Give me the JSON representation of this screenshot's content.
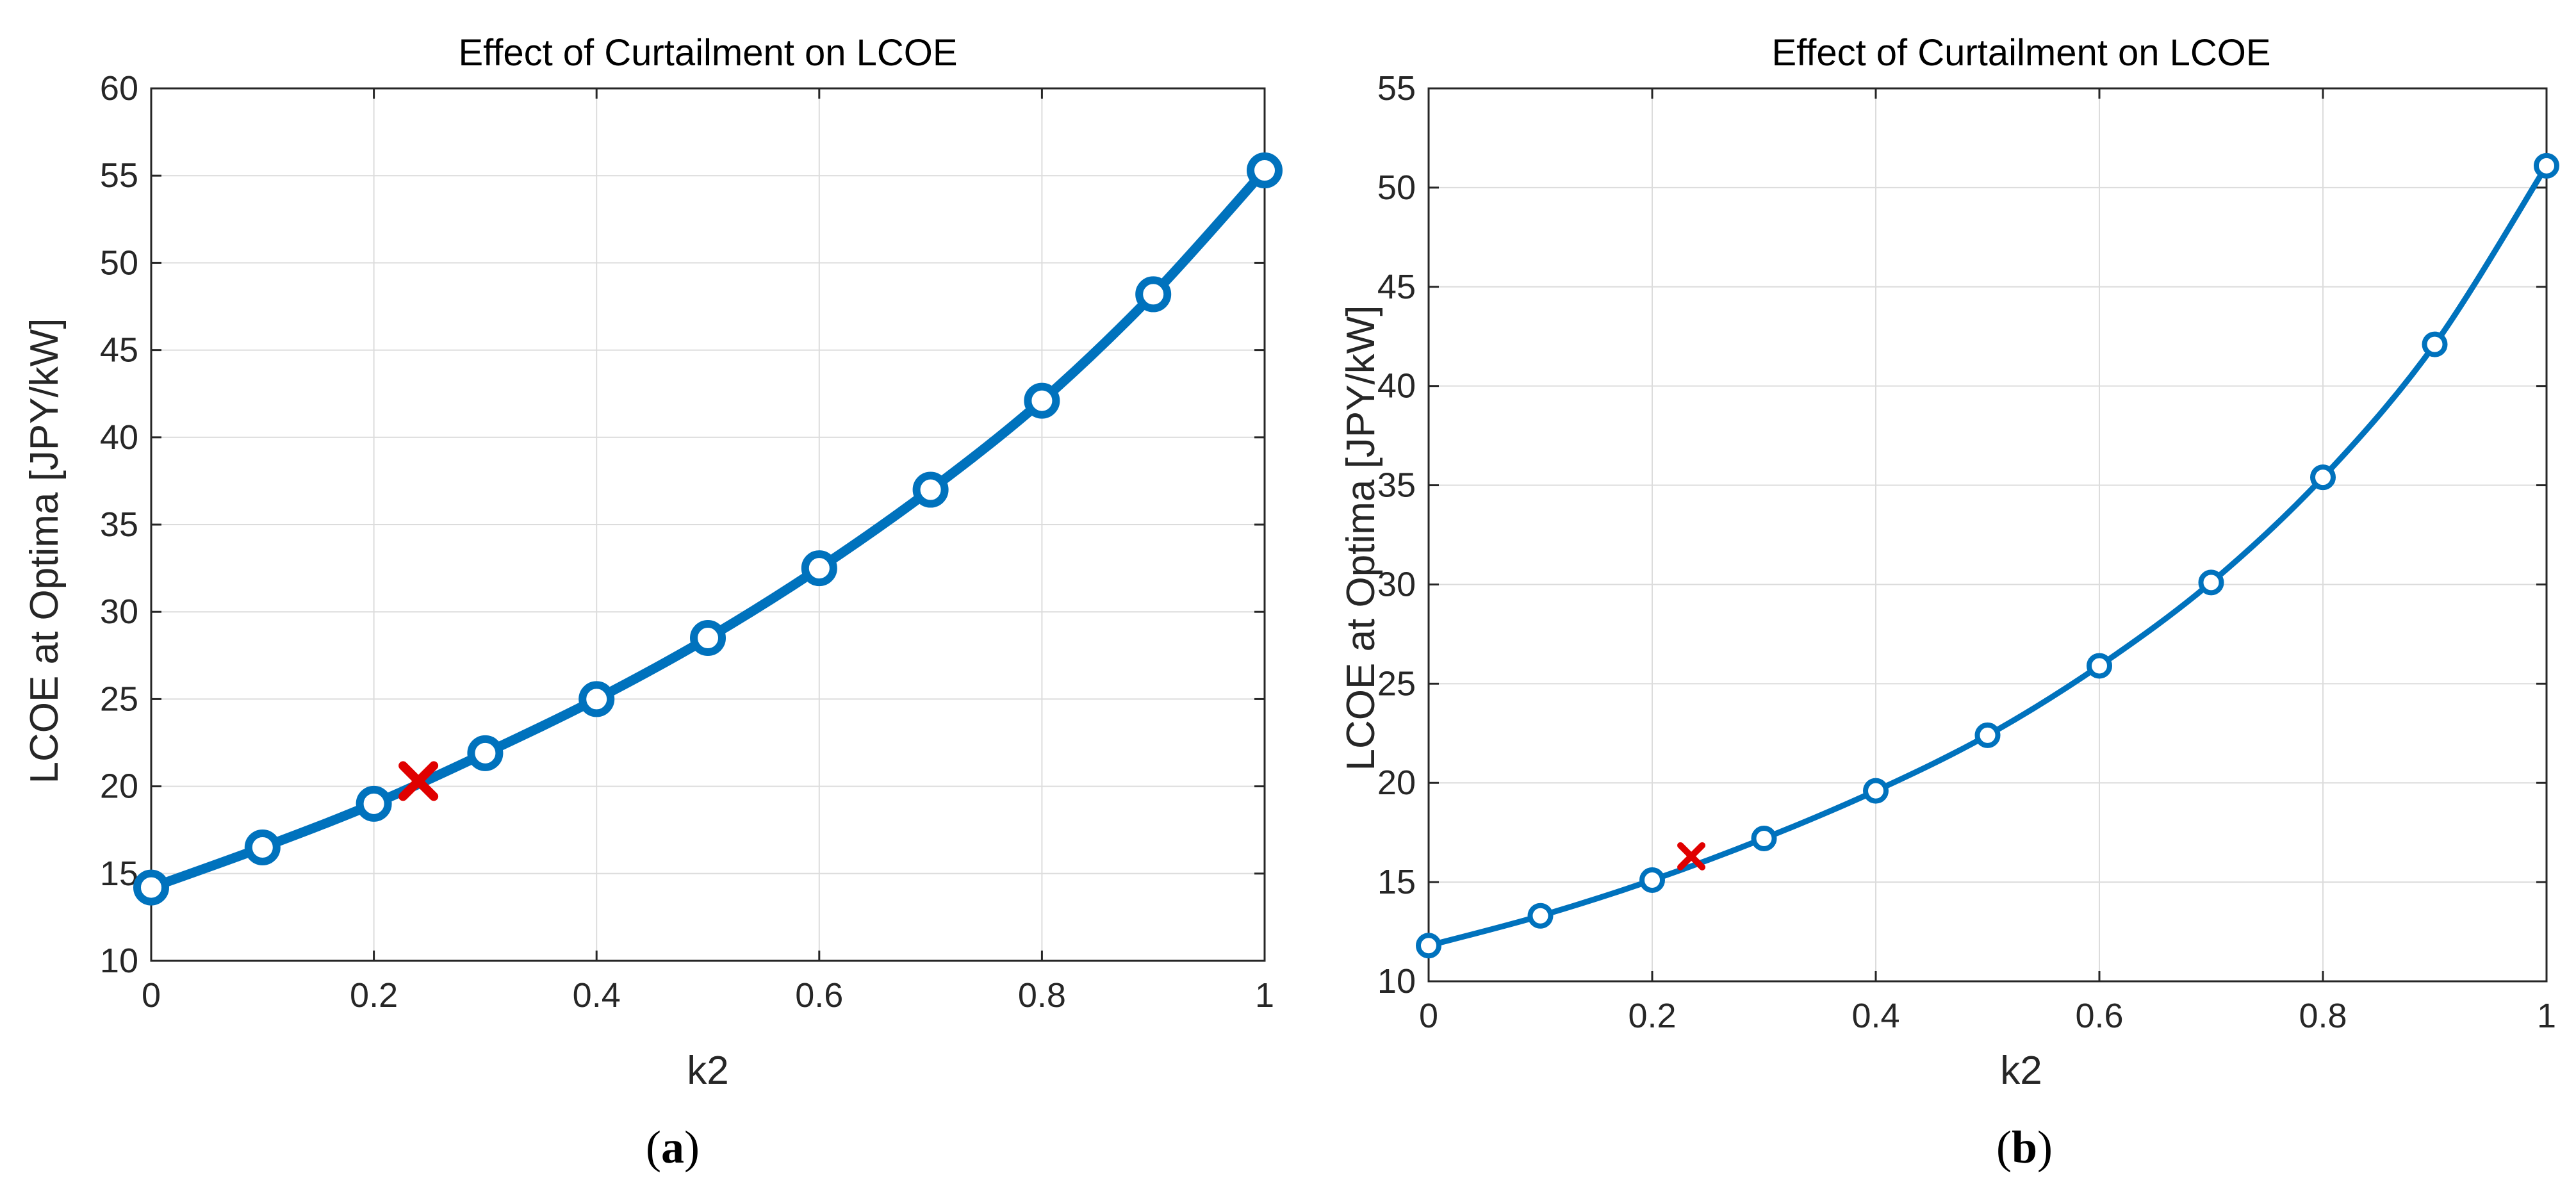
{
  "chart_data": [
    {
      "type": "line",
      "title": "Effect of Curtailment on LCOE",
      "xlabel": "k2",
      "ylabel": "LCOE at Optima [JPY/kW]",
      "xlim": [
        0,
        1
      ],
      "ylim": [
        10,
        60
      ],
      "xticks": [
        0,
        0.2,
        0.4,
        0.6,
        0.8,
        1
      ],
      "xtick_labels": [
        "0",
        "0.2",
        "0.4",
        "0.6",
        "0.8",
        "1"
      ],
      "yticks": [
        10,
        15,
        20,
        25,
        30,
        35,
        40,
        45,
        50,
        55,
        60
      ],
      "ytick_labels": [
        "10",
        "15",
        "20",
        "25",
        "30",
        "35",
        "40",
        "45",
        "50",
        "55",
        "60"
      ],
      "grid": true,
      "series": [
        {
          "name": "LCOE",
          "color": "#0072BD",
          "marker": "circle",
          "x": [
            0,
            0.1,
            0.2,
            0.3,
            0.4,
            0.5,
            0.6,
            0.7,
            0.8,
            0.9,
            1.0
          ],
          "y": [
            14.2,
            16.5,
            19.0,
            21.9,
            25.0,
            28.5,
            32.5,
            37.0,
            42.1,
            48.2,
            55.3
          ]
        }
      ],
      "optimum_marker": {
        "x": 0.24,
        "y": 20.3,
        "color": "#E00000",
        "marker": "x"
      },
      "caption_label": "a"
    },
    {
      "type": "line",
      "title": "Effect of Curtailment on LCOE",
      "xlabel": "k2",
      "ylabel": "LCOE at Optima [JPY/kW]",
      "xlim": [
        0,
        1
      ],
      "ylim": [
        10,
        55
      ],
      "xticks": [
        0,
        0.2,
        0.4,
        0.6,
        0.8,
        1
      ],
      "xtick_labels": [
        "0",
        "0.2",
        "0.4",
        "0.6",
        "0.8",
        "1"
      ],
      "yticks": [
        10,
        15,
        20,
        25,
        30,
        35,
        40,
        45,
        50,
        55
      ],
      "ytick_labels": [
        "10",
        "15",
        "20",
        "25",
        "30",
        "35",
        "40",
        "45",
        "50",
        "55"
      ],
      "grid": true,
      "series": [
        {
          "name": "LCOE",
          "color": "#0072BD",
          "marker": "circle",
          "x": [
            0,
            0.1,
            0.2,
            0.3,
            0.4,
            0.5,
            0.6,
            0.7,
            0.8,
            0.9,
            1.0
          ],
          "y": [
            11.8,
            13.3,
            15.1,
            17.2,
            19.6,
            22.4,
            25.9,
            30.1,
            35.4,
            42.1,
            51.1
          ]
        }
      ],
      "optimum_marker": {
        "x": 0.235,
        "y": 16.3,
        "color": "#E00000",
        "marker": "x"
      },
      "caption_label": "b"
    }
  ],
  "captions": {
    "open": "(",
    "close": ")",
    "a": "a",
    "b": "b"
  }
}
